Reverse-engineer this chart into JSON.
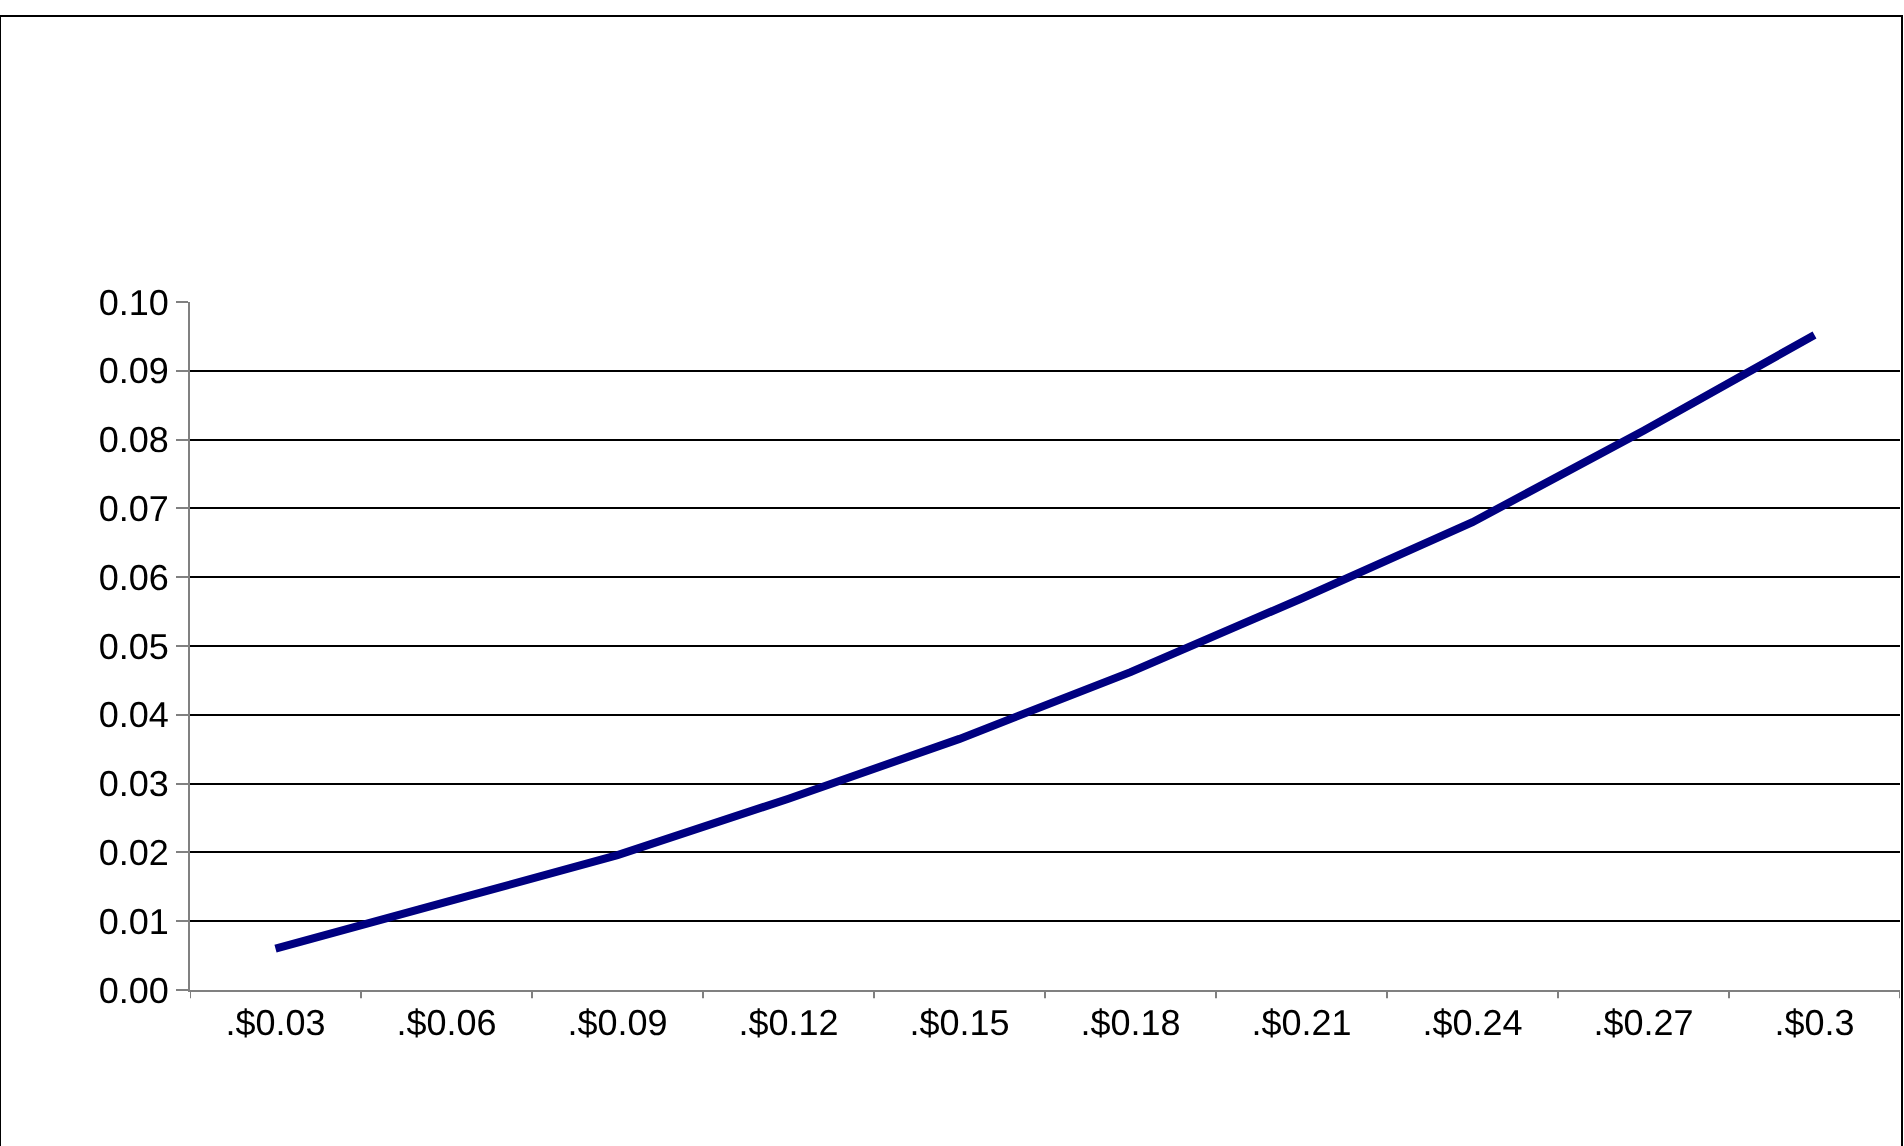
{
  "chart_data": {
    "type": "line",
    "categories": [
      ".$0.03",
      ".$0.06",
      ".$0.09",
      ".$0.12",
      ".$0.15",
      ".$0.18",
      ".$0.21",
      ".$0.24",
      ".$0.27",
      ".$0.3"
    ],
    "series": [
      {
        "color": "#000080",
        "values": [
          0.006,
          0.0128,
          0.0196,
          0.0278,
          0.0365,
          0.0462,
          0.0569,
          0.068,
          0.0813,
          0.0952
        ]
      }
    ],
    "ylim": [
      0,
      0.1
    ],
    "yticks": [
      {
        "value": 0,
        "label": "0.00"
      },
      {
        "value": 0.01,
        "label": "0.01"
      },
      {
        "value": 0.02,
        "label": "0.02"
      },
      {
        "value": 0.03,
        "label": "0.03"
      },
      {
        "value": 0.04,
        "label": "0.04"
      },
      {
        "value": 0.05,
        "label": "0.05"
      },
      {
        "value": 0.06,
        "label": "0.06"
      },
      {
        "value": 0.07,
        "label": "0.07"
      },
      {
        "value": 0.08,
        "label": "0.08"
      },
      {
        "value": 0.09,
        "label": "0.09"
      },
      {
        "value": 0.1,
        "label": "0.10"
      }
    ],
    "grid": "y",
    "marker": "none",
    "line_style": "solid",
    "legend": false
  }
}
